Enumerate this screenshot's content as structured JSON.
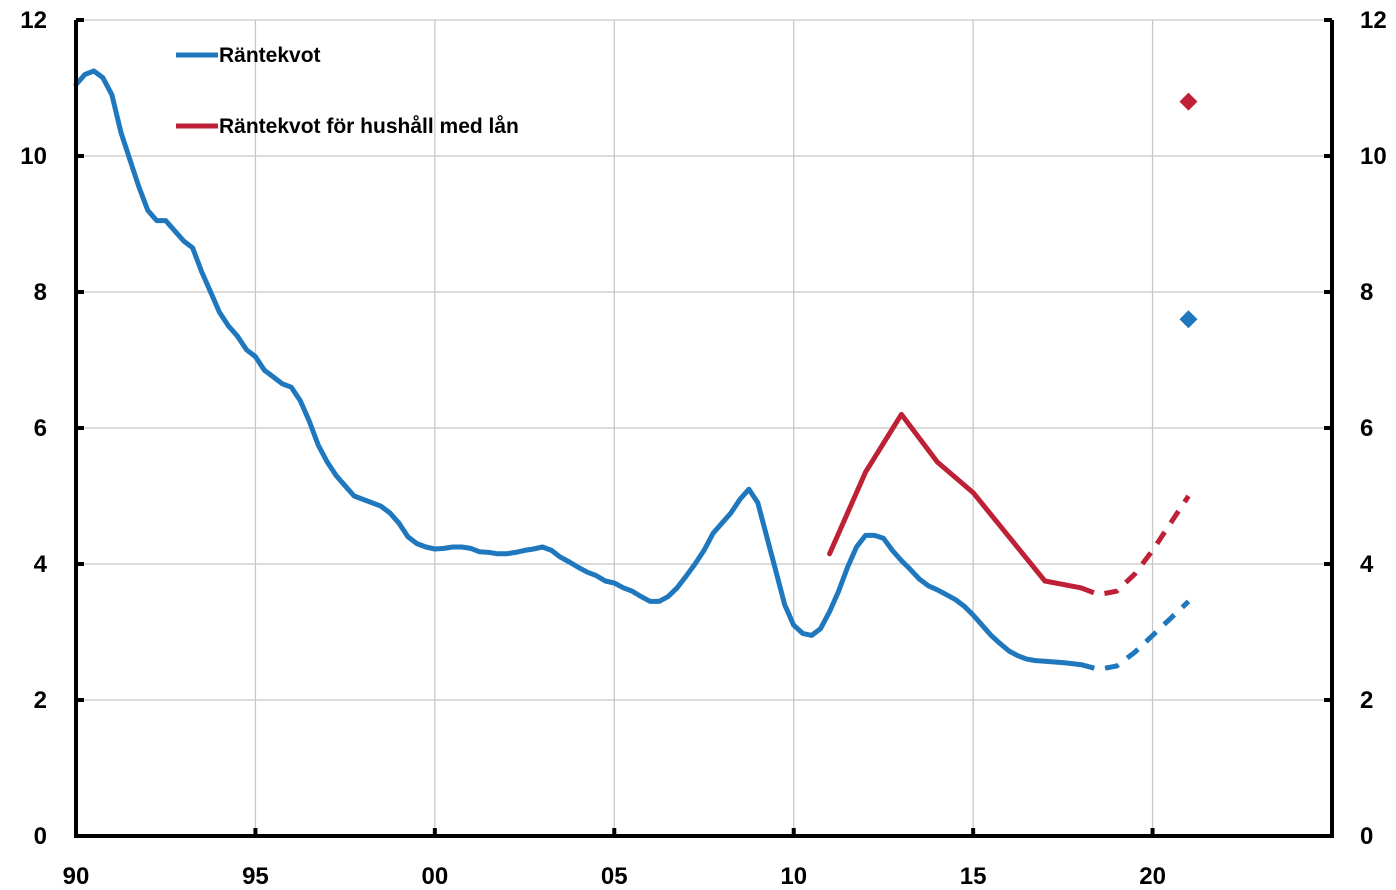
{
  "chart_data": {
    "type": "line",
    "title": "",
    "xlabel": "",
    "ylabel": "",
    "xlim": [
      1990,
      2025
    ],
    "ylim": [
      0,
      12
    ],
    "grid": true,
    "legend_placement": "top-left",
    "x_tick_labels": [
      "90",
      "95",
      "00",
      "05",
      "10",
      "15",
      "20"
    ],
    "x_tick_values": [
      1990,
      1995,
      2000,
      2005,
      2010,
      2015,
      2020
    ],
    "y_ticks": [
      0,
      2,
      4,
      6,
      8,
      10,
      12
    ],
    "series": [
      {
        "name": "Räntekvot",
        "color": "#1f77bd",
        "x": [
          1990.0,
          1990.25,
          1990.5,
          1990.75,
          1991.0,
          1991.25,
          1991.5,
          1991.75,
          1992.0,
          1992.25,
          1992.5,
          1992.75,
          1993.0,
          1993.25,
          1993.5,
          1993.75,
          1994.0,
          1994.25,
          1994.5,
          1994.75,
          1995.0,
          1995.25,
          1995.5,
          1995.75,
          1996.0,
          1996.25,
          1996.5,
          1996.75,
          1997.0,
          1997.25,
          1997.5,
          1997.75,
          1998.0,
          1998.25,
          1998.5,
          1998.75,
          1999.0,
          1999.25,
          1999.5,
          1999.75,
          2000.0,
          2000.25,
          2000.5,
          2000.75,
          2001.0,
          2001.25,
          2001.5,
          2001.75,
          2002.0,
          2002.25,
          2002.5,
          2002.75,
          2003.0,
          2003.25,
          2003.5,
          2003.75,
          2004.0,
          2004.25,
          2004.5,
          2004.75,
          2005.0,
          2005.25,
          2005.5,
          2005.75,
          2006.0,
          2006.25,
          2006.5,
          2006.75,
          2007.0,
          2007.25,
          2007.5,
          2007.75,
          2008.0,
          2008.25,
          2008.5,
          2008.75,
          2009.0,
          2009.25,
          2009.5,
          2009.75,
          2010.0,
          2010.25,
          2010.5,
          2010.75,
          2011.0,
          2011.25,
          2011.5,
          2011.75,
          2012.0,
          2012.25,
          2012.5,
          2012.75,
          2013.0,
          2013.25,
          2013.5,
          2013.75,
          2014.0,
          2014.25,
          2014.5,
          2014.75,
          2015.0,
          2015.25,
          2015.5,
          2015.75,
          2016.0,
          2016.25,
          2016.5,
          2016.75,
          2017.0,
          2017.5,
          2018.0
        ],
        "values": [
          11.05,
          11.2,
          11.25,
          11.15,
          10.9,
          10.35,
          9.95,
          9.55,
          9.2,
          9.05,
          9.05,
          8.9,
          8.75,
          8.65,
          8.3,
          8.0,
          7.7,
          7.5,
          7.35,
          7.15,
          7.05,
          6.85,
          6.75,
          6.65,
          6.6,
          6.4,
          6.1,
          5.75,
          5.5,
          5.3,
          5.15,
          5.0,
          4.95,
          4.9,
          4.85,
          4.75,
          4.6,
          4.4,
          4.3,
          4.25,
          4.22,
          4.23,
          4.25,
          4.25,
          4.23,
          4.18,
          4.17,
          4.15,
          4.15,
          4.17,
          4.2,
          4.22,
          4.25,
          4.2,
          4.1,
          4.03,
          3.95,
          3.88,
          3.83,
          3.75,
          3.72,
          3.65,
          3.6,
          3.52,
          3.45,
          3.45,
          3.52,
          3.65,
          3.82,
          4.0,
          4.2,
          4.45,
          4.6,
          4.75,
          4.95,
          5.1,
          4.9,
          4.4,
          3.9,
          3.4,
          3.1,
          2.98,
          2.95,
          3.05,
          3.3,
          3.6,
          3.95,
          4.25,
          4.42,
          4.42,
          4.38,
          4.2,
          4.05,
          3.92,
          3.78,
          3.68,
          3.62,
          3.55,
          3.48,
          3.38,
          3.25,
          3.1,
          2.95,
          2.83,
          2.72,
          2.65,
          2.6,
          2.58,
          2.57,
          2.55,
          2.52
        ]
      },
      {
        "name": "Räntekvot för hushåll med lån",
        "color": "#be2136",
        "x": [
          2011.0,
          2012.0,
          2013.0,
          2014.0,
          2015.0,
          2016.0,
          2017.0,
          2018.0
        ],
        "values": [
          4.15,
          5.35,
          6.2,
          5.5,
          5.05,
          4.4,
          3.75,
          3.65
        ]
      },
      {
        "name": "",
        "style": "dashed",
        "color": "#1f77bd",
        "x": [
          2018.0,
          2018.5,
          2019.0,
          2019.5,
          2020.0,
          2020.5,
          2021.0
        ],
        "values": [
          2.52,
          2.45,
          2.5,
          2.7,
          2.95,
          3.2,
          3.45
        ]
      },
      {
        "name": "",
        "style": "dashed",
        "color": "#be2136",
        "x": [
          2018.0,
          2018.5,
          2019.0,
          2019.5,
          2020.0,
          2020.5,
          2021.0
        ],
        "values": [
          3.65,
          3.55,
          3.6,
          3.85,
          4.2,
          4.6,
          5.0
        ]
      }
    ],
    "markers": [
      {
        "shape": "diamond",
        "color": "#be2136",
        "x": 2021.0,
        "y": 10.8
      },
      {
        "shape": "diamond",
        "color": "#1f77bd",
        "x": 2021.0,
        "y": 7.6
      }
    ],
    "legend": [
      {
        "label": "Räntekvot",
        "color": "#1f77bd"
      },
      {
        "label": "Räntekvot för hushåll med lån",
        "color": "#be2136"
      }
    ]
  }
}
